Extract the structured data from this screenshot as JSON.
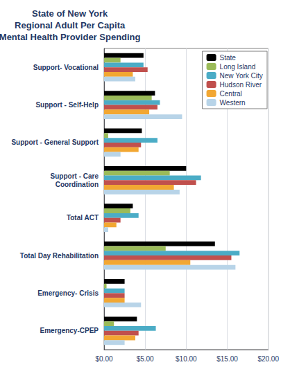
{
  "chart_data": {
    "type": "bar",
    "orientation": "horizontal",
    "title": "State of New York\nRegional Adult Per Capita\nMental Health Provider Spending",
    "categories": [
      "Support- Vocational",
      "Support - Self-Help",
      "Support - General Support",
      "Support - Care\nCoordination",
      "Total ACT",
      "Total Day Rehabilitation",
      "Emergency- Crisis",
      "Emergency-CPEP"
    ],
    "series": [
      {
        "name": "State",
        "color": "#000000",
        "values": [
          4.8,
          6.2,
          4.6,
          10.0,
          3.5,
          13.5,
          2.5,
          4.0
        ]
      },
      {
        "name": "Long Island",
        "color": "#9BBB59",
        "values": [
          2.0,
          5.8,
          0.5,
          8.0,
          3.2,
          7.5,
          0.3,
          1.2
        ]
      },
      {
        "name": "New York City",
        "color": "#4BACC6",
        "values": [
          4.8,
          6.8,
          6.5,
          11.8,
          4.2,
          16.5,
          2.5,
          6.3
        ]
      },
      {
        "name": "Hudson River",
        "color": "#C0504D",
        "values": [
          5.3,
          6.5,
          4.5,
          11.2,
          2.0,
          15.5,
          2.5,
          4.2
        ]
      },
      {
        "name": "Central",
        "color": "#F2A732",
        "values": [
          3.5,
          5.5,
          4.2,
          8.5,
          1.5,
          10.5,
          2.5,
          3.8
        ]
      },
      {
        "name": "Western",
        "color": "#B8D4E8",
        "values": [
          3.8,
          9.5,
          2.0,
          9.2,
          0.5,
          16.0,
          4.5,
          2.5
        ]
      }
    ],
    "xlim": [
      0,
      20
    ],
    "xticks": [
      {
        "value": 0,
        "label": "$0.00"
      },
      {
        "value": 5,
        "label": "$5.00"
      },
      {
        "value": 10,
        "label": "$10.00"
      },
      {
        "value": 15,
        "label": "$15.00"
      },
      {
        "value": 20,
        "label": "$20.00"
      }
    ],
    "grid": true,
    "legend": "upper right"
  }
}
